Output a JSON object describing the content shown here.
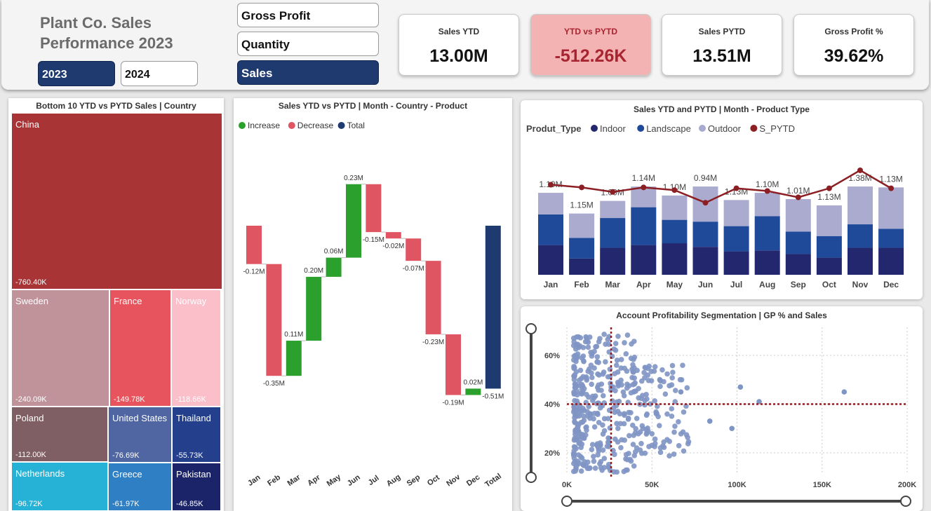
{
  "header": {
    "title_line1": "Plant Co. Sales",
    "title_line2": "Performance 2023",
    "years": [
      "2023",
      "2024"
    ],
    "selected_year": "2023",
    "metrics": [
      "Gross Profit",
      "Quantity",
      "Sales"
    ],
    "selected_metric": "Sales"
  },
  "kpis": [
    {
      "label": "Sales YTD",
      "value": "13.00M"
    },
    {
      "label": "YTD vs PYTD",
      "value": "-512.26K"
    },
    {
      "label": "Sales PYTD",
      "value": "13.51M"
    },
    {
      "label": "Gross Profit %",
      "value": "39.62%"
    }
  ],
  "colors": {
    "accent_navy": "#1e3a6e",
    "negative": "#e05562",
    "positive": "#2ca02c",
    "kpi_negative_bg": "#f4b3b3",
    "kpi_negative_text": "#a82430",
    "pytd_line": "#8b1f24"
  },
  "treemap": {
    "title": "Bottom 10 YTD vs PYTD Sales | Country",
    "tiles": [
      {
        "name": "China",
        "value": "-760.40K",
        "color": "#a83436"
      },
      {
        "name": "Sweden",
        "value": "-240.09K",
        "color": "#c0939a"
      },
      {
        "name": "France",
        "value": "-149.78K",
        "color": "#e8545d"
      },
      {
        "name": "Norway",
        "value": "-118.66K",
        "color": "#fbbfca"
      },
      {
        "name": "Poland",
        "value": "-112.00K",
        "color": "#7f5f63"
      },
      {
        "name": "United States",
        "value": "-76.69K",
        "color": "#4f66a3"
      },
      {
        "name": "Thailand",
        "value": "-55.73K",
        "color": "#243f8c"
      },
      {
        "name": "Netherlands",
        "value": "-96.72K",
        "color": "#26b2d6"
      },
      {
        "name": "Greece",
        "value": "-61.97K",
        "color": "#2f7fc4"
      },
      {
        "name": "Pakistan",
        "value": "-46.85K",
        "color": "#1b2468"
      }
    ]
  },
  "waterfall": {
    "title": "Sales YTD vs PYTD | Month - Country - Product",
    "legend": [
      "Increase",
      "Decrease",
      "Total"
    ]
  },
  "combo": {
    "title": "Sales YTD and PYTD | Month - Product Type",
    "legend_title": "Produt_Type",
    "legend": [
      "Indoor",
      "Landscape",
      "Outdoor",
      "S_PYTD"
    ]
  },
  "scatter": {
    "title": "Account Profitability Segmentation | GP % and Sales"
  },
  "chart_data": [
    {
      "type": "bar",
      "title": "Sales YTD vs PYTD | Month - Country - Product",
      "categories": [
        "Jan",
        "Feb",
        "Mar",
        "Apr",
        "May",
        "Jun",
        "Jul",
        "Aug",
        "Sep",
        "Oct",
        "Nov",
        "Dec",
        "Total"
      ],
      "values": [
        -0.12,
        -0.35,
        0.11,
        0.2,
        0.06,
        0.23,
        -0.15,
        -0.02,
        -0.07,
        -0.23,
        -0.19,
        0.02,
        -0.51
      ],
      "labels": [
        "-0.12M",
        "-0.35M",
        "0.11M",
        "0.20M",
        "0.06M",
        "0.23M",
        "-0.15M",
        "-0.02M",
        "-0.07M",
        "-0.23M",
        "-0.19M",
        "0.02M",
        "-0.51M"
      ]
    },
    {
      "type": "bar",
      "title": "Sales YTD and PYTD | Month - Product Type",
      "categories": [
        "Jan",
        "Feb",
        "Mar",
        "Apr",
        "May",
        "Jun",
        "Jul",
        "Aug",
        "Sep",
        "Oct",
        "Nov",
        "Dec"
      ],
      "series": [
        {
          "name": "Indoor",
          "values": [
            0.33,
            0.18,
            0.3,
            0.33,
            0.35,
            0.31,
            0.26,
            0.27,
            0.23,
            0.19,
            0.3,
            0.3
          ]
        },
        {
          "name": "Landscape",
          "values": [
            0.34,
            0.23,
            0.33,
            0.42,
            0.26,
            0.28,
            0.28,
            0.38,
            0.25,
            0.24,
            0.26,
            0.21
          ]
        },
        {
          "name": "Outdoor",
          "values": [
            0.24,
            0.27,
            0.19,
            0.23,
            0.27,
            0.39,
            0.29,
            0.26,
            0.36,
            0.34,
            0.42,
            0.46
          ]
        },
        {
          "name": "S_PYTD",
          "values": [
            1.0,
            0.97,
            0.92,
            0.97,
            0.94,
            0.8,
            0.96,
            0.93,
            0.86,
            0.96,
            1.16,
            0.96
          ]
        }
      ],
      "total_labels": [
        "1.19M",
        "1.15M",
        "1.09M",
        "1.14M",
        "1.10M",
        "0.94M",
        "1.13M",
        "1.10M",
        "1.01M",
        "1.13M",
        "1.38M",
        "1.13M"
      ]
    },
    {
      "type": "scatter",
      "title": "Account Profitability Segmentation | GP % and Sales",
      "xlim": [
        0,
        200000
      ],
      "ylim": [
        10,
        70
      ],
      "xticks": [
        "0K",
        "50K",
        "100K",
        "150K",
        "200K"
      ],
      "yticks": [
        "20%",
        "40%",
        "60%"
      ],
      "reference_lines": {
        "x": 26000,
        "y": 40
      },
      "outliers": [
        {
          "x": 102000,
          "y": 47
        },
        {
          "x": 113000,
          "y": 41
        },
        {
          "x": 163000,
          "y": 45
        },
        {
          "x": 97000,
          "y": 30
        },
        {
          "x": 67000,
          "y": 45
        },
        {
          "x": 84000,
          "y": 33
        }
      ]
    }
  ]
}
